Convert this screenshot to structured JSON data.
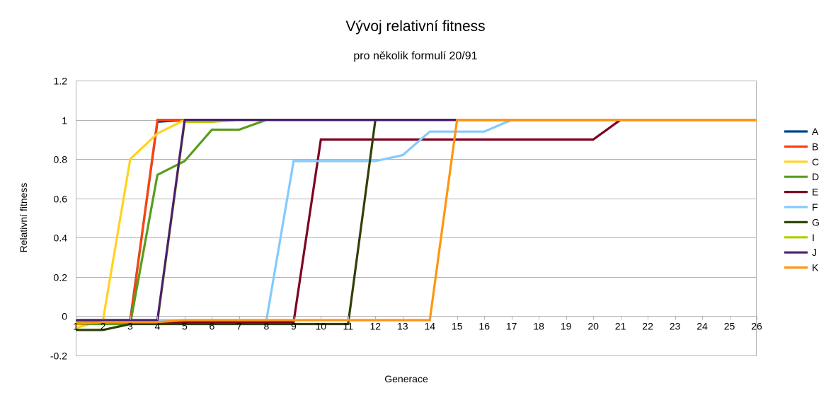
{
  "chart_data": {
    "type": "line",
    "title": "Vývoj relativní fitness",
    "subtitle": "pro několik formulí 20/91",
    "xlabel": "Generace",
    "ylabel": "Relativní fitness",
    "categories": [
      "1",
      "2",
      "3",
      "4",
      "5",
      "6",
      "7",
      "8",
      "9",
      "10",
      "11",
      "12",
      "13",
      "14",
      "15",
      "16",
      "17",
      "18",
      "19",
      "20",
      "21",
      "22",
      "23",
      "24",
      "25",
      "26"
    ],
    "ylim": [
      -0.2,
      1.2
    ],
    "yticks": [
      "1.2",
      "1",
      "0.8",
      "0.6",
      "0.4",
      "0.2",
      "0",
      "-0.2"
    ],
    "ytick_values": [
      1.2,
      1,
      0.8,
      0.6,
      0.4,
      0.2,
      0,
      -0.2
    ],
    "grid": true,
    "legend_position": "right",
    "series": [
      {
        "name": "A",
        "color": "#004586",
        "values": [
          -0.02,
          -0.02,
          -0.02,
          0.99,
          1,
          1,
          1,
          1,
          1,
          1,
          1,
          1,
          1,
          1,
          1,
          1,
          1,
          1,
          1,
          1,
          1,
          1,
          1,
          1,
          1,
          1
        ]
      },
      {
        "name": "B",
        "color": "#ff420e",
        "values": [
          -0.03,
          -0.03,
          -0.03,
          1,
          1,
          1,
          1,
          1,
          1,
          1,
          1,
          1,
          1,
          1,
          1,
          1,
          1,
          1,
          1,
          1,
          1,
          1,
          1,
          1,
          1,
          1
        ]
      },
      {
        "name": "C",
        "color": "#ffd320",
        "values": [
          -0.06,
          -0.02,
          0.8,
          0.93,
          1,
          1,
          1,
          1,
          1,
          1,
          1,
          1,
          1,
          1,
          1,
          1,
          1,
          1,
          1,
          1,
          1,
          1,
          1,
          1,
          1,
          1
        ]
      },
      {
        "name": "D",
        "color": "#579d1c",
        "values": [
          -0.04,
          -0.04,
          -0.04,
          0.72,
          0.79,
          0.95,
          0.95,
          1,
          1,
          1,
          1,
          1,
          1,
          1,
          1,
          1,
          1,
          1,
          1,
          1,
          1,
          1,
          1,
          1,
          1,
          1
        ]
      },
      {
        "name": "E",
        "color": "#7e0021",
        "values": [
          -0.03,
          -0.03,
          -0.03,
          -0.03,
          -0.03,
          -0.03,
          -0.03,
          -0.03,
          -0.03,
          0.9,
          0.9,
          0.9,
          0.9,
          0.9,
          0.9,
          0.9,
          0.9,
          0.9,
          0.9,
          0.9,
          1,
          1,
          1,
          1,
          1,
          1
        ]
      },
      {
        "name": "F",
        "color": "#83caff",
        "values": [
          -0.02,
          -0.02,
          -0.02,
          -0.02,
          -0.02,
          -0.02,
          -0.02,
          -0.02,
          0.79,
          0.79,
          0.79,
          0.79,
          0.82,
          0.94,
          0.94,
          0.94,
          1,
          1,
          1,
          1,
          1,
          1,
          1,
          1,
          1,
          1
        ]
      },
      {
        "name": "G",
        "color": "#314004",
        "values": [
          -0.07,
          -0.07,
          -0.04,
          -0.04,
          -0.04,
          -0.04,
          -0.04,
          -0.04,
          -0.04,
          -0.04,
          -0.04,
          1,
          1,
          1,
          1,
          1,
          1,
          1,
          1,
          1,
          1,
          1,
          1,
          1,
          1,
          1
        ]
      },
      {
        "name": "I",
        "color": "#aecf00",
        "values": [
          -0.03,
          -0.03,
          -0.03,
          -0.03,
          0.99,
          0.99,
          1,
          1,
          1,
          1,
          1,
          1,
          1,
          1,
          1,
          1,
          1,
          1,
          1,
          1,
          1,
          1,
          1,
          1,
          1,
          1
        ]
      },
      {
        "name": "J",
        "color": "#4b1f6f",
        "values": [
          -0.02,
          -0.02,
          -0.02,
          -0.02,
          1,
          1,
          1,
          1,
          1,
          1,
          1,
          1,
          1,
          1,
          1,
          1,
          1,
          1,
          1,
          1,
          1,
          1,
          1,
          1,
          1,
          1
        ]
      },
      {
        "name": "K",
        "color": "#ff950e",
        "values": [
          -0.04,
          -0.03,
          -0.03,
          -0.03,
          -0.02,
          -0.02,
          -0.02,
          -0.02,
          -0.02,
          -0.02,
          -0.02,
          -0.02,
          -0.02,
          -0.02,
          1,
          1,
          1,
          1,
          1,
          1,
          1,
          1,
          1,
          1,
          1,
          1
        ]
      }
    ]
  }
}
